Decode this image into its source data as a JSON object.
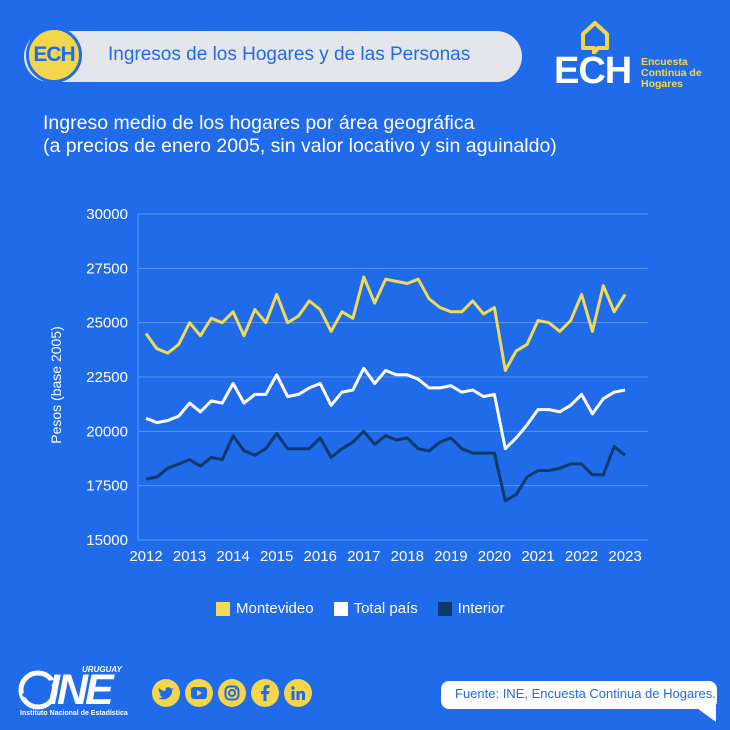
{
  "header": {
    "badge": "ECH",
    "title": "Ingresos de los Hogares y de las Personas"
  },
  "brand": {
    "name": "ECH",
    "sub": [
      "Encuesta",
      "Continua de",
      "Hogares"
    ]
  },
  "colors": {
    "background": "#1f6bea",
    "accent_yellow": "#f5d64a",
    "montevideo": "#efdb57",
    "total": "#ffffff",
    "interior": "#0c3a6b"
  },
  "chart_data": {
    "type": "line",
    "title": "Ingreso medio de los hogares por área geográfica",
    "subtitle": "(a precios de enero 2005, sin valor locativo y sin aguinaldo)",
    "xlabel": "",
    "ylabel": "Pesos (base 2005)",
    "ylim": [
      15000,
      30000
    ],
    "yticks": [
      15000,
      17500,
      20000,
      22500,
      25000,
      27500,
      30000
    ],
    "xticks": [
      "2012",
      "2013",
      "2014",
      "2015",
      "2016",
      "2017",
      "2018",
      "2019",
      "2020",
      "2021",
      "2022",
      "2023"
    ],
    "x_start": 2012,
    "x_step": 0.25,
    "grid": "horizontal",
    "legend_position": "bottom",
    "series": [
      {
        "name": "Montevideo",
        "color": "#efdb57",
        "values": [
          24500,
          23800,
          23600,
          24000,
          25000,
          24400,
          25200,
          25000,
          25500,
          24400,
          25600,
          25000,
          26300,
          25000,
          25300,
          26000,
          25600,
          24600,
          25500,
          25200,
          27100,
          25900,
          27000,
          26900,
          26800,
          27000,
          26100,
          25700,
          25500,
          25500,
          26000,
          25400,
          25700,
          22800,
          23700,
          24000,
          25100,
          25000,
          24600,
          25100,
          26300,
          24600,
          26700,
          25500,
          26300
        ]
      },
      {
        "name": "Total país",
        "color": "#ffffff",
        "values": [
          20600,
          20400,
          20500,
          20700,
          21300,
          20900,
          21400,
          21300,
          22200,
          21300,
          21700,
          21700,
          22600,
          21600,
          21700,
          22000,
          22200,
          21200,
          21800,
          21900,
          22900,
          22200,
          22800,
          22600,
          22600,
          22400,
          22000,
          22000,
          22100,
          21800,
          21900,
          21600,
          21700,
          19200,
          19700,
          20300,
          21000,
          21000,
          20900,
          21200,
          21700,
          20800,
          21500,
          21800,
          21900
        ]
      },
      {
        "name": "Interior",
        "color": "#0c3a6b",
        "values": [
          17800,
          17900,
          18300,
          18500,
          18700,
          18400,
          18800,
          18700,
          19800,
          19100,
          18900,
          19200,
          19900,
          19200,
          19200,
          19200,
          19700,
          18800,
          19200,
          19500,
          20000,
          19400,
          19800,
          19600,
          19700,
          19200,
          19100,
          19500,
          19700,
          19200,
          19000,
          19000,
          19000,
          16800,
          17100,
          17900,
          18200,
          18200,
          18300,
          18500,
          18500,
          18000,
          18000,
          19300,
          18900
        ]
      }
    ]
  },
  "footer": {
    "logo_top": "URUGUAY",
    "logo_main": "INE",
    "logo_sub": "Instituto Nacional de Estadística",
    "social_icons": [
      "twitter-icon",
      "youtube-icon",
      "instagram-icon",
      "facebook-icon",
      "linkedin-icon"
    ],
    "source": "Fuente:  INE, Encuesta Continua de Hogares."
  }
}
